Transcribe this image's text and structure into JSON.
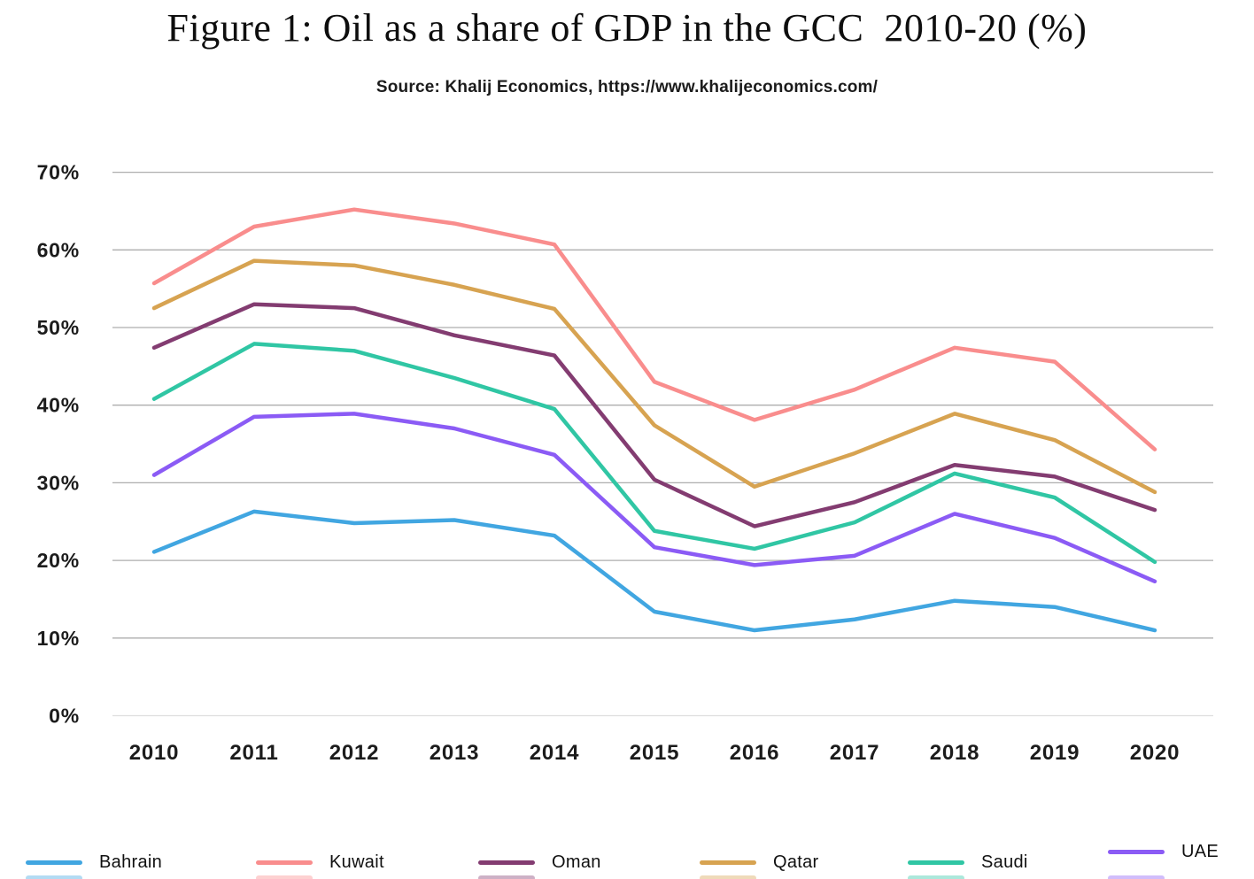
{
  "page": {
    "title": "Figure 1: Oil as a share of GDP in the GCC  2010-20 (%)",
    "source": "Source: Khalij Economics, https://www.khalijeconomics.com/"
  },
  "chart_data": {
    "type": "line",
    "title": "Figure 1: Oil as a share of GDP in the GCC 2010-20 (%)",
    "subtitle": "Source: Khalij Economics, https://www.khalijeconomics.com/",
    "x": [
      "2010",
      "2011",
      "2012",
      "2013",
      "2014",
      "2015",
      "2016",
      "2017",
      "2018",
      "2019",
      "2020"
    ],
    "xlabel": "",
    "ylabel": "",
    "ylim": [
      0,
      70
    ],
    "yticks": [
      0,
      10,
      20,
      30,
      40,
      50,
      60,
      70
    ],
    "yticklabels": [
      "0%",
      "10%",
      "20%",
      "30%",
      "40%",
      "50%",
      "60%",
      "70%"
    ],
    "grid": true,
    "legend_position": "bottom",
    "series": [
      {
        "name": "Bahrain",
        "color": "#41a6e1",
        "values": [
          21.1,
          26.3,
          24.8,
          25.2,
          23.2,
          13.4,
          11.0,
          12.4,
          14.8,
          14.0,
          11.0
        ]
      },
      {
        "name": "Kuwait",
        "color": "#f98d8d",
        "values": [
          55.7,
          63.0,
          65.2,
          63.4,
          60.7,
          43.0,
          38.1,
          42.0,
          47.4,
          45.6,
          34.3
        ]
      },
      {
        "name": "Oman",
        "color": "#833c71",
        "values": [
          47.4,
          53.0,
          52.5,
          49.0,
          46.4,
          30.4,
          24.4,
          27.5,
          32.3,
          30.8,
          26.5
        ]
      },
      {
        "name": "Qatar",
        "color": "#d7a351",
        "values": [
          52.5,
          58.6,
          58.0,
          55.5,
          52.4,
          37.4,
          29.5,
          33.8,
          38.9,
          35.5,
          28.8
        ]
      },
      {
        "name": "Saudi",
        "color": "#30c6a4",
        "values": [
          40.8,
          47.9,
          47.0,
          43.5,
          39.5,
          23.8,
          21.5,
          24.9,
          31.2,
          28.1,
          19.8
        ]
      },
      {
        "name": "UAE",
        "color": "#8b5bf5",
        "values": [
          31.0,
          38.5,
          38.9,
          37.0,
          33.6,
          21.7,
          19.4,
          20.6,
          26.0,
          22.9,
          17.3
        ]
      }
    ]
  },
  "colors": {
    "gridline": "#aeaeae",
    "gridline_zero": "#dedede",
    "axis_text": "#1c1c1c",
    "background": "#ffffff"
  }
}
